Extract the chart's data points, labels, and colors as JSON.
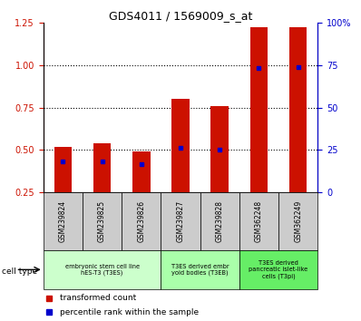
{
  "title": "GDS4011 / 1569009_s_at",
  "samples": [
    "GSM239824",
    "GSM239825",
    "GSM239826",
    "GSM239827",
    "GSM239828",
    "GSM362248",
    "GSM362249"
  ],
  "transformed_count": [
    0.52,
    0.54,
    0.49,
    0.8,
    0.76,
    1.22,
    1.22
  ],
  "percentile_rank": [
    18.5,
    18.5,
    17.0,
    26.5,
    25.0,
    73.0,
    74.0
  ],
  "bar_color": "#cc1100",
  "dot_color": "#0000cc",
  "ylim_left": [
    0.25,
    1.25
  ],
  "ylim_right": [
    0,
    100
  ],
  "yticks_left": [
    0.25,
    0.5,
    0.75,
    1.0,
    1.25
  ],
  "yticks_right": [
    0,
    25,
    50,
    75,
    100
  ],
  "ytick_labels_right": [
    "0",
    "25",
    "50",
    "75",
    "100%"
  ],
  "dotted_lines": [
    0.5,
    0.75,
    1.0
  ],
  "groups": [
    {
      "label": "embryonic stem cell line\nhES-T3 (T3ES)",
      "indices": [
        0,
        1,
        2
      ],
      "color": "#ccffcc"
    },
    {
      "label": "T3ES derived embr\nyoid bodies (T3EB)",
      "indices": [
        3,
        4
      ],
      "color": "#aaffaa"
    },
    {
      "label": "T3ES derived\npancreatic islet-like\ncells (T3pi)",
      "indices": [
        5,
        6
      ],
      "color": "#66ee66"
    }
  ],
  "cell_type_label": "cell type",
  "legend_items": [
    {
      "label": "transformed count",
      "color": "#cc1100"
    },
    {
      "label": "percentile rank within the sample",
      "color": "#0000cc"
    }
  ],
  "bar_width": 0.45,
  "bar_bottom": 0.25,
  "tick_label_color_left": "#cc1100",
  "tick_label_color_right": "#0000cc",
  "sample_box_color": "#cccccc",
  "plot_bg": "#ffffff"
}
